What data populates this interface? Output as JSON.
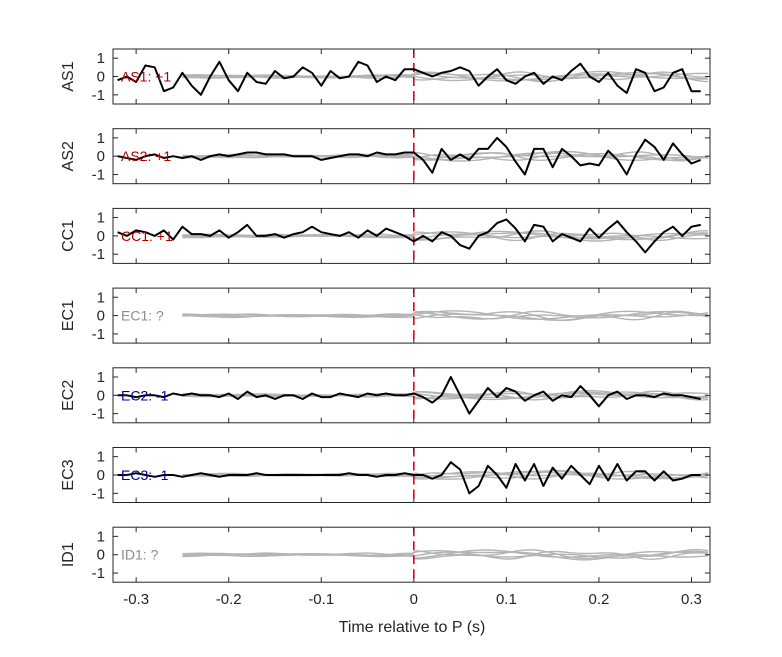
{
  "chart_data": {
    "type": "line",
    "xlabel": "Time relative to P (s)",
    "xlim": [
      -0.325,
      0.32
    ],
    "xticks": [
      -0.3,
      -0.2,
      -0.1,
      0,
      0.1,
      0.2,
      0.3
    ],
    "xtick_labels": [
      "-0.3",
      "-0.2",
      "-0.1",
      "0",
      "0.1",
      "0.2",
      "0.3"
    ],
    "ylim": [
      -1.5,
      1.5
    ],
    "yticks": [
      -1,
      0,
      1
    ],
    "ytick_labels": [
      "-1",
      "0",
      "1"
    ],
    "marker_x": 0,
    "colors": {
      "main": "#000000",
      "background": "#b4b4b4",
      "marker": "#e8001c",
      "positive": "#b00000",
      "negative": "#000099",
      "unknown": "#8c8c8c"
    },
    "panels": [
      {
        "ylabel": "AS1",
        "annotation": "AS1: +1",
        "polarity": "positive",
        "series": {
          "name": "",
          "x": [
            -0.32,
            -0.31,
            -0.3,
            -0.29,
            -0.28,
            -0.27,
            -0.26,
            -0.25,
            -0.24,
            -0.23,
            -0.22,
            -0.21,
            -0.2,
            -0.19,
            -0.18,
            -0.17,
            -0.16,
            -0.15,
            -0.14,
            -0.13,
            -0.12,
            -0.11,
            -0.1,
            -0.09,
            -0.08,
            -0.07,
            -0.06,
            -0.05,
            -0.04,
            -0.03,
            -0.02,
            -0.01,
            0.0,
            0.01,
            0.02,
            0.03,
            0.04,
            0.05,
            0.06,
            0.07,
            0.08,
            0.09,
            0.1,
            0.11,
            0.12,
            0.13,
            0.14,
            0.15,
            0.16,
            0.17,
            0.18,
            0.19,
            0.2,
            0.21,
            0.22,
            0.23,
            0.24,
            0.25,
            0.26,
            0.27,
            0.28,
            0.29,
            0.3,
            0.31
          ],
          "y": [
            -0.2,
            0.0,
            -0.3,
            0.6,
            0.5,
            -0.8,
            -0.6,
            0.2,
            -0.5,
            -1.0,
            0.0,
            0.8,
            -0.2,
            -0.8,
            0.2,
            -0.3,
            -0.4,
            0.3,
            -0.1,
            0.0,
            0.5,
            0.2,
            -0.5,
            0.3,
            -0.1,
            0.0,
            0.8,
            0.6,
            -0.3,
            0.0,
            -0.2,
            0.4,
            0.4,
            0.2,
            0.0,
            0.2,
            0.3,
            0.5,
            0.3,
            -0.5,
            0.0,
            0.4,
            -0.2,
            -0.4,
            0.0,
            0.2,
            -0.4,
            0.0,
            -0.2,
            0.3,
            0.7,
            0.0,
            -0.3,
            0.2,
            -0.5,
            -0.9,
            0.4,
            0.2,
            -0.8,
            -0.6,
            0.2,
            0.4,
            -0.8,
            -0.8
          ]
        }
      },
      {
        "ylabel": "AS2",
        "annotation": "AS2: +1",
        "polarity": "positive",
        "series": {
          "name": "",
          "x": [
            -0.32,
            -0.31,
            -0.3,
            -0.29,
            -0.28,
            -0.27,
            -0.26,
            -0.25,
            -0.24,
            -0.23,
            -0.22,
            -0.21,
            -0.2,
            -0.19,
            -0.18,
            -0.17,
            -0.16,
            -0.15,
            -0.14,
            -0.13,
            -0.12,
            -0.11,
            -0.1,
            -0.09,
            -0.08,
            -0.07,
            -0.06,
            -0.05,
            -0.04,
            -0.03,
            -0.02,
            -0.01,
            0.0,
            0.01,
            0.02,
            0.03,
            0.04,
            0.05,
            0.06,
            0.07,
            0.08,
            0.09,
            0.1,
            0.11,
            0.12,
            0.13,
            0.14,
            0.15,
            0.16,
            0.17,
            0.18,
            0.19,
            0.2,
            0.21,
            0.22,
            0.23,
            0.24,
            0.25,
            0.26,
            0.27,
            0.28,
            0.29,
            0.3,
            0.31
          ],
          "y": [
            0.0,
            -0.1,
            -0.2,
            0.0,
            0.1,
            -0.1,
            0.0,
            -0.1,
            0.0,
            -0.2,
            0.0,
            0.1,
            0.0,
            0.1,
            0.2,
            0.2,
            0.1,
            0.1,
            0.1,
            0.0,
            0.0,
            0.0,
            -0.2,
            -0.1,
            0.0,
            0.1,
            0.1,
            0.0,
            0.2,
            0.1,
            0.1,
            0.2,
            0.2,
            -0.2,
            -0.9,
            0.4,
            -0.2,
            0.1,
            -0.2,
            0.4,
            0.4,
            1.0,
            0.5,
            -0.3,
            -1.0,
            0.4,
            0.4,
            -0.6,
            0.4,
            0.0,
            -0.5,
            -0.4,
            -0.5,
            0.3,
            -0.2,
            -1.0,
            0.1,
            0.9,
            0.5,
            -0.2,
            0.7,
            0.1,
            -0.4,
            -0.2
          ]
        }
      },
      {
        "ylabel": "CC1",
        "annotation": "CC1: +1",
        "polarity": "positive",
        "series": {
          "name": "",
          "x": [
            -0.32,
            -0.31,
            -0.3,
            -0.29,
            -0.28,
            -0.27,
            -0.26,
            -0.25,
            -0.24,
            -0.23,
            -0.22,
            -0.21,
            -0.2,
            -0.19,
            -0.18,
            -0.17,
            -0.16,
            -0.15,
            -0.14,
            -0.13,
            -0.12,
            -0.11,
            -0.1,
            -0.09,
            -0.08,
            -0.07,
            -0.06,
            -0.05,
            -0.04,
            -0.03,
            -0.02,
            -0.01,
            0.0,
            0.01,
            0.02,
            0.03,
            0.04,
            0.05,
            0.06,
            0.07,
            0.08,
            0.09,
            0.1,
            0.11,
            0.12,
            0.13,
            0.14,
            0.15,
            0.16,
            0.17,
            0.18,
            0.19,
            0.2,
            0.21,
            0.22,
            0.23,
            0.24,
            0.25,
            0.26,
            0.27,
            0.28,
            0.29,
            0.3,
            0.31
          ],
          "y": [
            0.2,
            0.0,
            0.3,
            0.2,
            0.0,
            0.3,
            -0.2,
            0.5,
            0.1,
            0.1,
            0.0,
            0.3,
            -0.1,
            0.2,
            0.6,
            0.0,
            0.0,
            0.1,
            -0.1,
            0.1,
            0.2,
            0.5,
            0.2,
            0.1,
            0.0,
            0.2,
            -0.1,
            0.3,
            0.0,
            0.4,
            0.2,
            0.0,
            -0.3,
            0.0,
            -0.3,
            0.2,
            0.0,
            -0.5,
            -0.7,
            0.0,
            0.2,
            0.7,
            0.9,
            0.4,
            -0.3,
            0.6,
            0.5,
            -0.3,
            0.1,
            -0.1,
            -0.3,
            0.4,
            -0.1,
            0.4,
            0.8,
            0.2,
            -0.3,
            -0.9,
            -0.3,
            0.2,
            0.5,
            0.0,
            0.5,
            0.6
          ]
        }
      },
      {
        "ylabel": "EC1",
        "annotation": "EC1: ?",
        "polarity": "unknown",
        "series": null
      },
      {
        "ylabel": "EC2",
        "annotation": "EC2: -1",
        "polarity": "negative",
        "series": {
          "name": "",
          "x": [
            -0.32,
            -0.31,
            -0.3,
            -0.29,
            -0.28,
            -0.27,
            -0.26,
            -0.25,
            -0.24,
            -0.23,
            -0.22,
            -0.21,
            -0.2,
            -0.19,
            -0.18,
            -0.17,
            -0.16,
            -0.15,
            -0.14,
            -0.13,
            -0.12,
            -0.11,
            -0.1,
            -0.09,
            -0.08,
            -0.07,
            -0.06,
            -0.05,
            -0.04,
            -0.03,
            -0.02,
            -0.01,
            0.0,
            0.01,
            0.02,
            0.03,
            0.04,
            0.05,
            0.06,
            0.07,
            0.08,
            0.09,
            0.1,
            0.11,
            0.12,
            0.13,
            0.14,
            0.15,
            0.16,
            0.17,
            0.18,
            0.19,
            0.2,
            0.21,
            0.22,
            0.23,
            0.24,
            0.25,
            0.26,
            0.27,
            0.28,
            0.29,
            0.3,
            0.31
          ],
          "y": [
            0.0,
            0.0,
            -0.1,
            0.0,
            0.0,
            -0.1,
            0.1,
            0.0,
            0.1,
            0.0,
            0.0,
            -0.1,
            0.1,
            -0.2,
            0.2,
            -0.1,
            0.0,
            -0.2,
            0.0,
            0.0,
            -0.2,
            0.1,
            -0.1,
            -0.1,
            0.1,
            0.0,
            -0.1,
            0.1,
            0.0,
            0.1,
            0.0,
            0.0,
            0.1,
            -0.1,
            -0.4,
            0.0,
            1.0,
            0.0,
            -1.0,
            -0.3,
            0.4,
            -0.1,
            0.4,
            0.2,
            -0.3,
            0.0,
            0.2,
            -0.3,
            0.0,
            -0.1,
            0.5,
            0.0,
            -0.6,
            0.0,
            0.2,
            -0.2,
            0.0,
            0.0,
            -0.1,
            0.1,
            0.0,
            0.0,
            -0.1,
            -0.2
          ]
        }
      },
      {
        "ylabel": "EC3",
        "annotation": "EC3: -1",
        "polarity": "negative",
        "series": {
          "name": "",
          "x": [
            -0.32,
            -0.31,
            -0.3,
            -0.29,
            -0.28,
            -0.27,
            -0.26,
            -0.25,
            -0.24,
            -0.23,
            -0.22,
            -0.21,
            -0.2,
            -0.19,
            -0.18,
            -0.17,
            -0.16,
            -0.15,
            -0.14,
            -0.13,
            -0.12,
            -0.11,
            -0.1,
            -0.09,
            -0.08,
            -0.07,
            -0.06,
            -0.05,
            -0.04,
            -0.03,
            -0.02,
            -0.01,
            0.0,
            0.01,
            0.02,
            0.03,
            0.04,
            0.05,
            0.06,
            0.07,
            0.08,
            0.09,
            0.1,
            0.11,
            0.12,
            0.13,
            0.14,
            0.15,
            0.16,
            0.17,
            0.18,
            0.19,
            0.2,
            0.21,
            0.22,
            0.23,
            0.24,
            0.25,
            0.26,
            0.27,
            0.28,
            0.29,
            0.3,
            0.31
          ],
          "y": [
            0.0,
            0.0,
            0.1,
            0.0,
            -0.1,
            0.0,
            0.0,
            -0.1,
            0.0,
            0.1,
            0.0,
            -0.1,
            0.0,
            0.0,
            0.0,
            0.1,
            0.0,
            0.0,
            0.0,
            0.0,
            0.0,
            0.0,
            0.0,
            0.0,
            0.0,
            0.1,
            0.0,
            0.0,
            -0.1,
            0.0,
            0.0,
            0.1,
            0.0,
            0.0,
            -0.2,
            0.0,
            0.7,
            0.3,
            -1.0,
            -0.6,
            0.5,
            0.0,
            -0.7,
            0.6,
            -0.3,
            0.6,
            -0.6,
            0.4,
            -0.2,
            0.5,
            0.0,
            -0.5,
            0.5,
            -0.3,
            0.6,
            -0.3,
            0.2,
            0.2,
            -0.3,
            0.2,
            -0.3,
            -0.2,
            0.0,
            0.0
          ]
        }
      },
      {
        "ylabel": "ID1",
        "annotation": "ID1: ?",
        "polarity": "unknown",
        "series": null
      }
    ]
  }
}
